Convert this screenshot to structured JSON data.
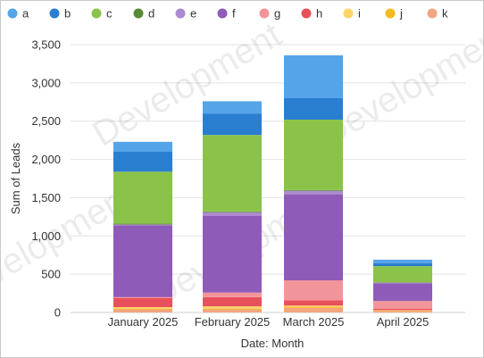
{
  "chart_data": {
    "type": "bar",
    "stacked": true,
    "categories": [
      "January 2025",
      "February 2025",
      "March 2025",
      "April 2025"
    ],
    "xlabel": "Date: Month",
    "ylabel": "Sum of Leads",
    "ylim": [
      0,
      3500
    ],
    "yticks": [
      0,
      500,
      1000,
      1500,
      2000,
      2500,
      3000,
      3500
    ],
    "ytick_labels": [
      "0",
      "500",
      "1,000",
      "1,500",
      "2,000",
      "2,500",
      "3,000",
      "3,500"
    ],
    "grid": true,
    "legend_position": "top",
    "watermark": "Development",
    "series": [
      {
        "name": "k",
        "color": "#f2a57e",
        "values": [
          40,
          40,
          60,
          20
        ]
      },
      {
        "name": "j",
        "color": "#f5b920",
        "values": [
          10,
          10,
          10,
          5
        ]
      },
      {
        "name": "i",
        "color": "#fcd46a",
        "values": [
          20,
          30,
          20,
          5
        ]
      },
      {
        "name": "h",
        "color": "#e8505b",
        "values": [
          120,
          120,
          70,
          20
        ]
      },
      {
        "name": "g",
        "color": "#f2959a",
        "values": [
          10,
          60,
          260,
          100
        ]
      },
      {
        "name": "f",
        "color": "#8f5bb8",
        "values": [
          940,
          1000,
          1120,
          230
        ]
      },
      {
        "name": "e",
        "color": "#ad8ad0",
        "values": [
          10,
          50,
          50,
          10
        ]
      },
      {
        "name": "d",
        "color": "#5b8a36",
        "values": [
          10,
          10,
          10,
          5
        ]
      },
      {
        "name": "c",
        "color": "#8bc34a",
        "values": [
          680,
          1000,
          920,
          210
        ]
      },
      {
        "name": "b",
        "color": "#2a7ecf",
        "values": [
          260,
          280,
          280,
          40
        ]
      },
      {
        "name": "a",
        "color": "#55a4e8",
        "values": [
          130,
          160,
          560,
          45
        ]
      }
    ],
    "legend_order": [
      "a",
      "b",
      "c",
      "d",
      "e",
      "f",
      "g",
      "h",
      "i",
      "j",
      "k"
    ]
  }
}
